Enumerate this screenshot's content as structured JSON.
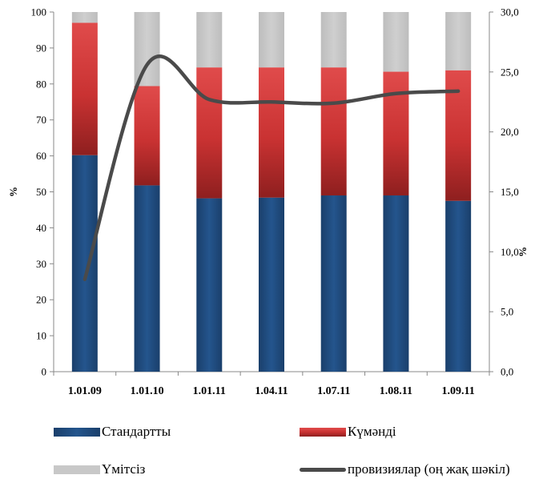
{
  "chart_data": {
    "type": "bar",
    "stacked": true,
    "categories": [
      "1.01.09",
      "1.01.10",
      "1.01.11",
      "1.04.11",
      "1.07.11",
      "1.08.11",
      "1.09.11"
    ],
    "series": [
      {
        "name": "Стандартты",
        "values": [
          60.2,
          51.8,
          48.2,
          48.4,
          49.0,
          49.0,
          47.5
        ],
        "color": "#1f4e82",
        "axis": "left"
      },
      {
        "name": "Күмәнді",
        "values": [
          36.8,
          27.6,
          36.4,
          36.2,
          35.6,
          34.4,
          36.3
        ],
        "color": "#d63c3c",
        "axis": "left"
      },
      {
        "name": "Үмітсіз",
        "values": [
          3.0,
          20.6,
          15.4,
          15.4,
          15.4,
          16.6,
          16.2
        ],
        "color": "#c8c8c8",
        "axis": "left"
      },
      {
        "name": "провизиялар (оң жақ шәкіл)",
        "type": "line",
        "values": [
          7.7,
          25.6,
          22.7,
          22.5,
          22.4,
          23.2,
          23.4
        ],
        "color": "#4a4a4a",
        "axis": "right"
      }
    ],
    "ylabel": "%",
    "ylabel_right": "%",
    "ylim": [
      0,
      100
    ],
    "ylim_right": [
      0,
      30
    ],
    "yticks": [
      "0",
      "10",
      "20",
      "30",
      "40",
      "50",
      "60",
      "70",
      "80",
      "90",
      "100"
    ],
    "yticks_right": [
      "0,0",
      "5,0",
      "10,0",
      "15,0",
      "20,0",
      "25,0",
      "30,0"
    ],
    "legend_position": "bottom",
    "grid": false
  }
}
